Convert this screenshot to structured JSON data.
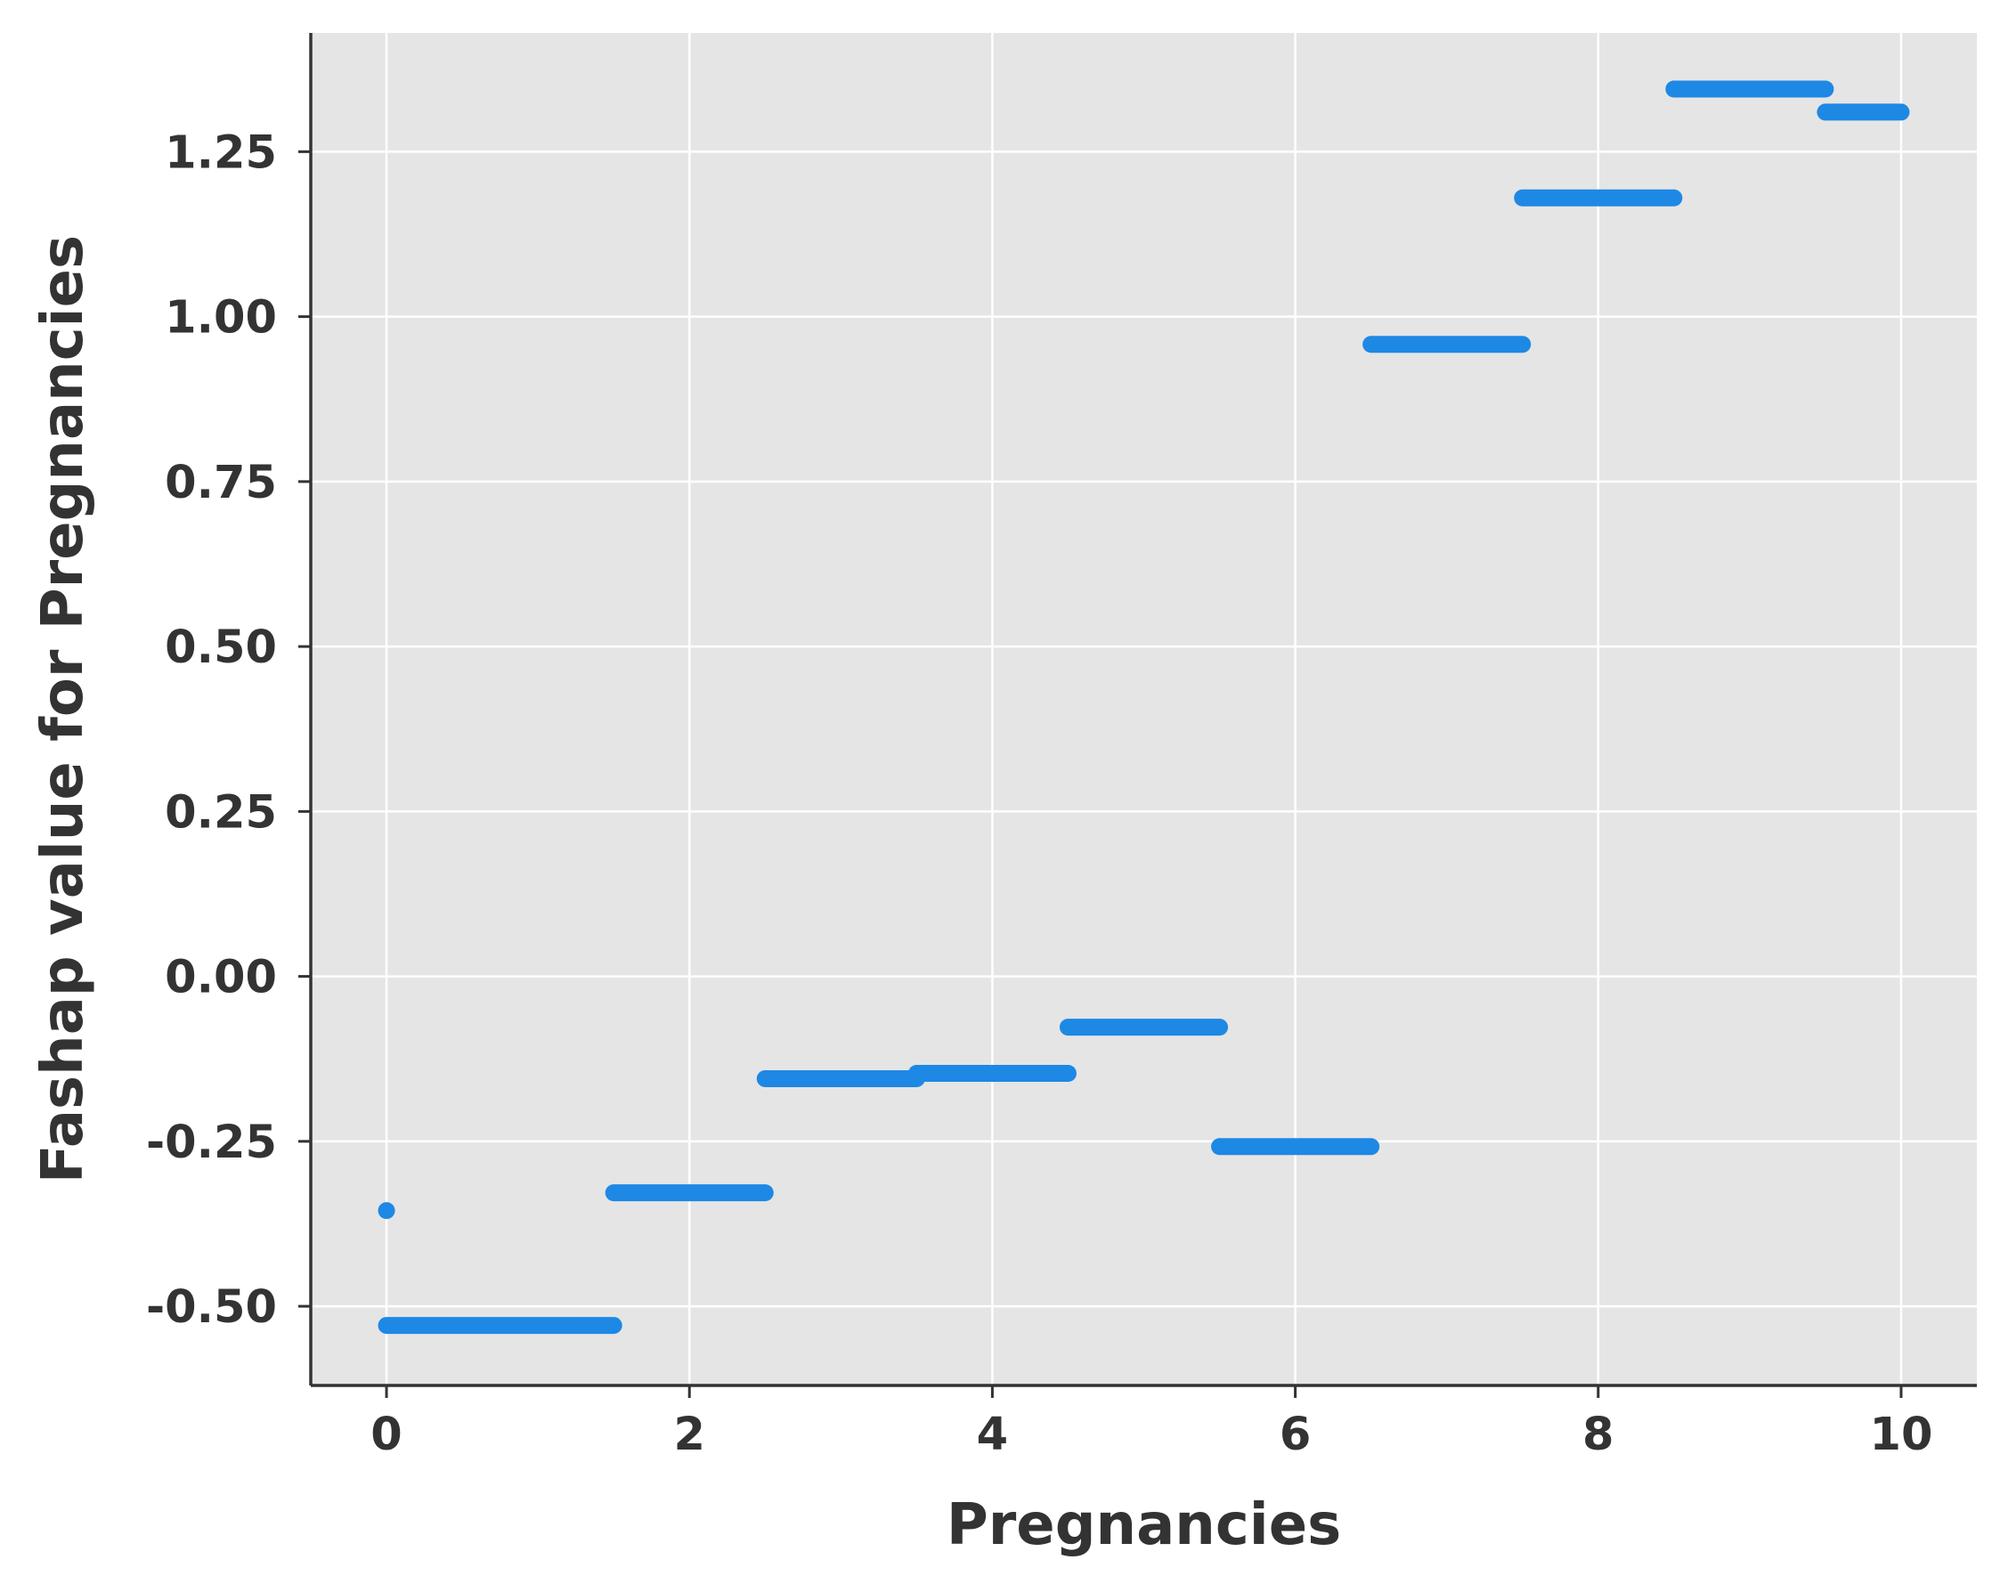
{
  "chart_data": {
    "type": "scatter",
    "title": "",
    "xlabel": "Pregnancies",
    "ylabel": "Fashap value for Pregnancies",
    "xlim": [
      -0.5,
      10.5
    ],
    "ylim": [
      -0.62,
      1.43
    ],
    "xticks": [
      0,
      2,
      4,
      6,
      8,
      10
    ],
    "yticks": [
      -0.5,
      -0.25,
      0.0,
      0.25,
      0.5,
      0.75,
      1.0,
      1.25
    ],
    "xtick_labels": [
      "0",
      "2",
      "4",
      "6",
      "8",
      "10"
    ],
    "ytick_labels": [
      "-0.50",
      "-0.25",
      "0.00",
      "0.25",
      "0.50",
      "0.75",
      "1.00",
      "1.25"
    ],
    "grid": true,
    "background": "#e5e5e5",
    "marker_color": "#1e88e5",
    "points": [
      {
        "x": 0,
        "y": -0.355
      }
    ],
    "segments": [
      {
        "x_start": 0.0,
        "x_end": 1.5,
        "y": -0.529
      },
      {
        "x_start": 1.5,
        "x_end": 2.5,
        "y": -0.328
      },
      {
        "x_start": 2.5,
        "x_end": 3.5,
        "y": -0.155
      },
      {
        "x_start": 3.5,
        "x_end": 4.5,
        "y": -0.147
      },
      {
        "x_start": 4.5,
        "x_end": 5.5,
        "y": -0.077
      },
      {
        "x_start": 5.5,
        "x_end": 6.5,
        "y": -0.258
      },
      {
        "x_start": 6.5,
        "x_end": 7.5,
        "y": 0.958
      },
      {
        "x_start": 7.5,
        "x_end": 8.5,
        "y": 1.18
      },
      {
        "x_start": 8.5,
        "x_end": 9.5,
        "y": 1.345
      },
      {
        "x_start": 9.5,
        "x_end": 10.0,
        "y": 1.31
      }
    ]
  }
}
